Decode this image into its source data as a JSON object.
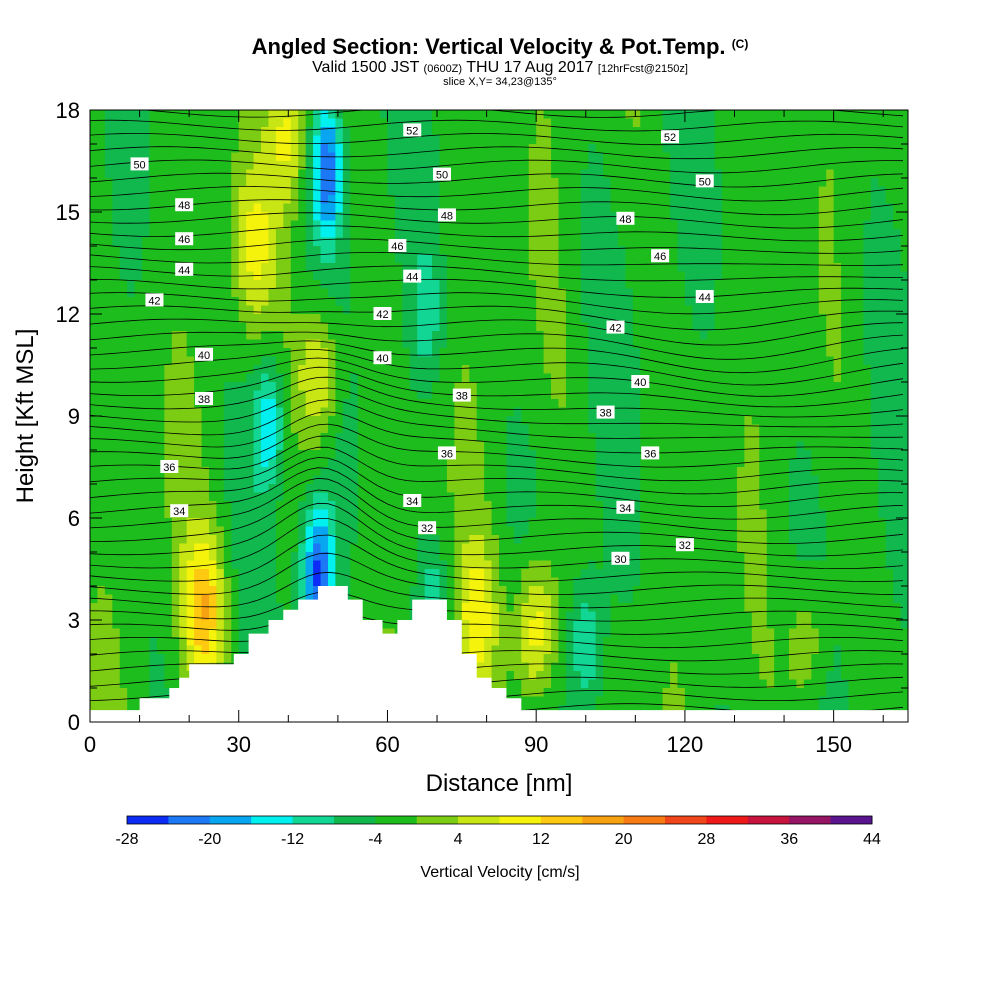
{
  "header": {
    "title": "Angled Section: Vertical Velocity & Pot.Temp.",
    "title_unit": "(C)",
    "valid_prefix": "Valid 1500 JST",
    "valid_utc": "(0600Z)",
    "valid_date": "THU 17 Aug 2017",
    "forecast": "[12hrFcst@2150z]",
    "slice": "slice X,Y= 34,23@135°"
  },
  "chart_data": {
    "type": "contour",
    "xlabel": "Distance [nm]",
    "ylabel": "Height [Kft MSL]",
    "xlim": [
      0,
      165
    ],
    "ylim": [
      0,
      18
    ],
    "x_ticks": [
      0,
      30,
      60,
      90,
      120,
      150
    ],
    "y_ticks": [
      0,
      3,
      6,
      9,
      12,
      15,
      18
    ],
    "colorbar": {
      "label": "Vertical Velocity [cm/s]",
      "tick_labels": [
        "-28",
        "-20",
        "-12",
        "-4",
        "4",
        "12",
        "20",
        "28",
        "36",
        "44"
      ],
      "bins": [
        -28,
        -24,
        -20,
        -16,
        -12,
        -8,
        -4,
        0,
        4,
        8,
        12,
        16,
        20,
        24,
        28,
        32,
        36,
        40,
        44
      ],
      "colors": [
        "#0c2cf5",
        "#1c78f5",
        "#08a6f0",
        "#00f0f0",
        "#12d694",
        "#10b84e",
        "#1ebd1e",
        "#7ccc14",
        "#c8e614",
        "#f5f20c",
        "#ffc811",
        "#f7a212",
        "#f77a12",
        "#f0461a",
        "#f01919",
        "#c8143c",
        "#961464",
        "#5a1490"
      ]
    },
    "pot_temp_labels": [
      {
        "v": 30,
        "x": 107,
        "y": 4.8
      },
      {
        "v": 32,
        "x": 68,
        "y": 5.7
      },
      {
        "v": 32,
        "x": 120,
        "y": 5.2
      },
      {
        "v": 34,
        "x": 18,
        "y": 6.2
      },
      {
        "v": 34,
        "x": 65,
        "y": 6.5
      },
      {
        "v": 34,
        "x": 108,
        "y": 6.3
      },
      {
        "v": 36,
        "x": 16,
        "y": 7.5
      },
      {
        "v": 36,
        "x": 72,
        "y": 7.9
      },
      {
        "v": 36,
        "x": 113,
        "y": 7.9
      },
      {
        "v": 38,
        "x": 23,
        "y": 9.5
      },
      {
        "v": 38,
        "x": 75,
        "y": 9.6
      },
      {
        "v": 38,
        "x": 104,
        "y": 9.1
      },
      {
        "v": 40,
        "x": 23,
        "y": 10.8
      },
      {
        "v": 40,
        "x": 59,
        "y": 10.7
      },
      {
        "v": 40,
        "x": 111,
        "y": 10.0
      },
      {
        "v": 42,
        "x": 13,
        "y": 12.4
      },
      {
        "v": 42,
        "x": 59,
        "y": 12.0
      },
      {
        "v": 42,
        "x": 106,
        "y": 11.6
      },
      {
        "v": 44,
        "x": 19,
        "y": 13.3
      },
      {
        "v": 44,
        "x": 65,
        "y": 13.1
      },
      {
        "v": 44,
        "x": 124,
        "y": 12.5
      },
      {
        "v": 46,
        "x": 19,
        "y": 14.2
      },
      {
        "v": 46,
        "x": 62,
        "y": 14.0
      },
      {
        "v": 46,
        "x": 115,
        "y": 13.7
      },
      {
        "v": 48,
        "x": 19,
        "y": 15.2
      },
      {
        "v": 48,
        "x": 72,
        "y": 14.9
      },
      {
        "v": 48,
        "x": 108,
        "y": 14.8
      },
      {
        "v": 50,
        "x": 10,
        "y": 16.4
      },
      {
        "v": 50,
        "x": 71,
        "y": 16.1
      },
      {
        "v": 50,
        "x": 124,
        "y": 15.9
      },
      {
        "v": 52,
        "x": 65,
        "y": 17.4
      },
      {
        "v": 52,
        "x": 117,
        "y": 17.2
      }
    ],
    "terrain_profile": [
      [
        0,
        0.35
      ],
      [
        10,
        0.35
      ],
      [
        10,
        0.7
      ],
      [
        16,
        0.7
      ],
      [
        16,
        1.0
      ],
      [
        18,
        1.0
      ],
      [
        18,
        1.3
      ],
      [
        20,
        1.3
      ],
      [
        20,
        1.7
      ],
      [
        29,
        1.7
      ],
      [
        29,
        2.0
      ],
      [
        32,
        2.0
      ],
      [
        32,
        2.6
      ],
      [
        36,
        2.6
      ],
      [
        36,
        3.0
      ],
      [
        39,
        3.0
      ],
      [
        39,
        3.3
      ],
      [
        42,
        3.3
      ],
      [
        42,
        3.6
      ],
      [
        46,
        3.6
      ],
      [
        46,
        4.0
      ],
      [
        52,
        4.0
      ],
      [
        52,
        3.6
      ],
      [
        55,
        3.6
      ],
      [
        55,
        3.0
      ],
      [
        59,
        3.0
      ],
      [
        59,
        2.6
      ],
      [
        62,
        2.6
      ],
      [
        62,
        3.0
      ],
      [
        65,
        3.0
      ],
      [
        65,
        3.6
      ],
      [
        72,
        3.6
      ],
      [
        72,
        3.0
      ],
      [
        75,
        3.0
      ],
      [
        75,
        2.0
      ],
      [
        78,
        2.0
      ],
      [
        78,
        1.3
      ],
      [
        81,
        1.3
      ],
      [
        81,
        1.0
      ],
      [
        84,
        1.0
      ],
      [
        84,
        0.7
      ],
      [
        87,
        0.7
      ],
      [
        87,
        0.35
      ],
      [
        165,
        0.35
      ]
    ],
    "updrafts": [
      {
        "x": 23,
        "y": 3.3,
        "peak": 16
      },
      {
        "x": 90,
        "y": 2.7,
        "peak": 16
      },
      {
        "x": 78,
        "y": 3.0,
        "peak": 11
      },
      {
        "x": 46,
        "y": 10.2,
        "peak": 13
      },
      {
        "x": 40,
        "y": 17.2,
        "peak": 11
      },
      {
        "x": 33,
        "y": 14.0,
        "peak": 9
      },
      {
        "x": 145,
        "y": 2.3,
        "peak": 8
      }
    ],
    "downdrafts": [
      {
        "x": 46,
        "y": 4.3,
        "peak": -22
      },
      {
        "x": 36,
        "y": 8.8,
        "peak": -14
      },
      {
        "x": 48,
        "y": 16.3,
        "peak": -20
      },
      {
        "x": 69,
        "y": 3.2,
        "peak": -9
      },
      {
        "x": 100,
        "y": 2.3,
        "peak": -10
      },
      {
        "x": 68,
        "y": 12.0,
        "peak": -8
      }
    ]
  }
}
